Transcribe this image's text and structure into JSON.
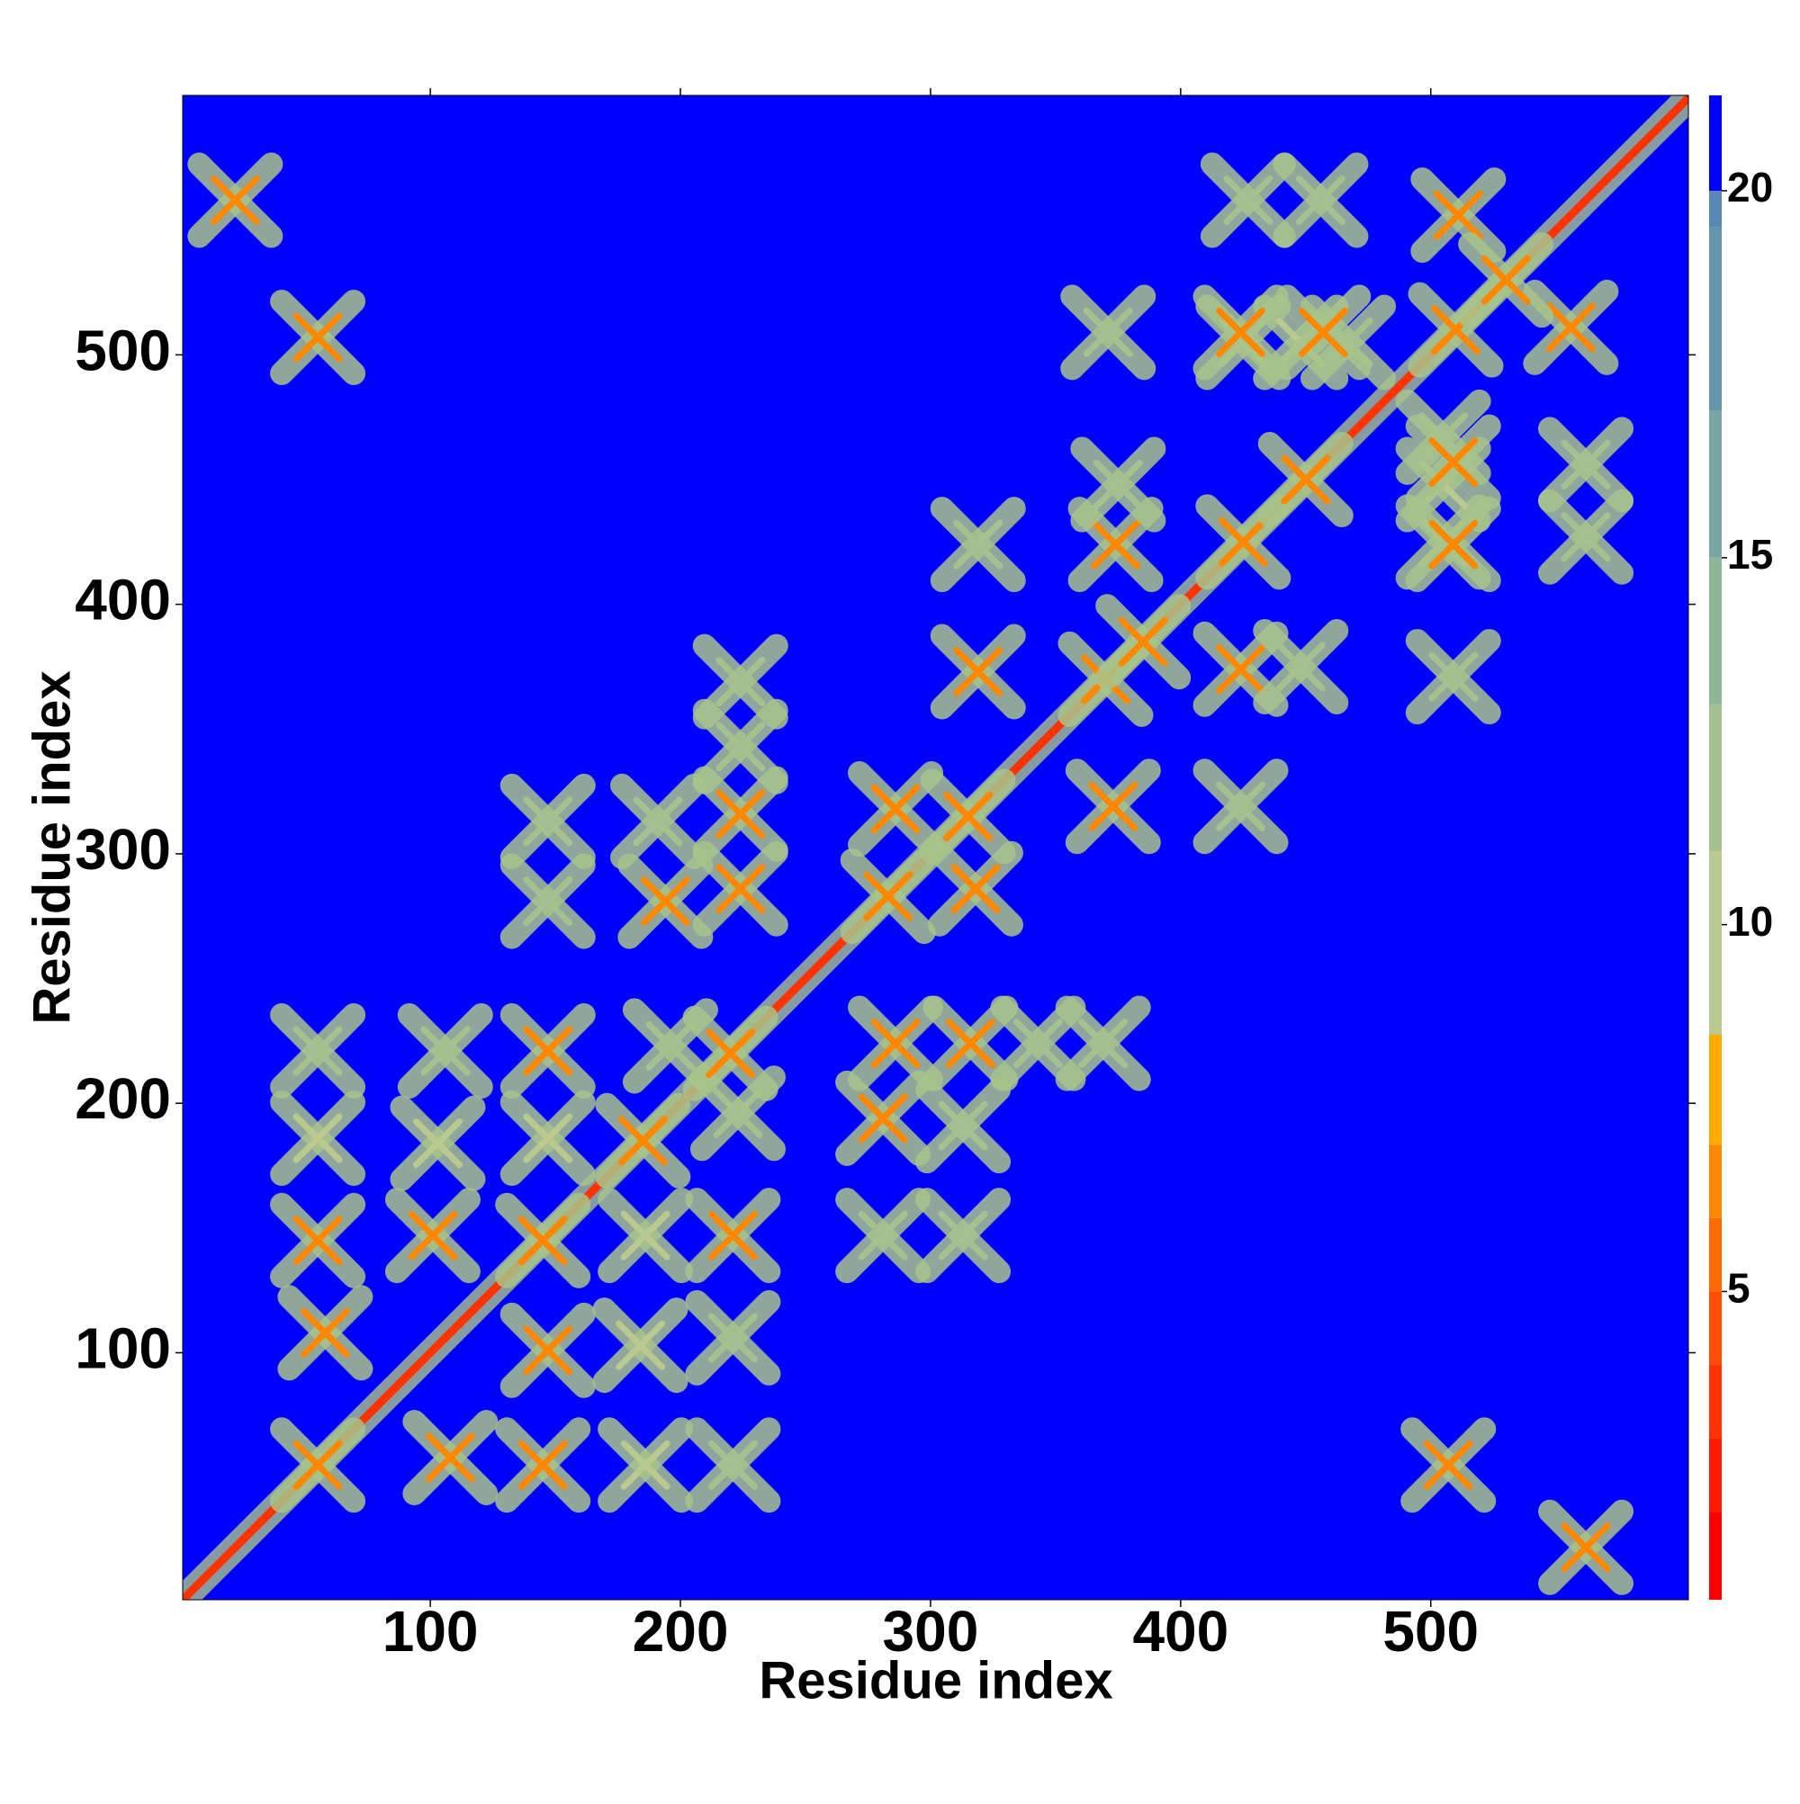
{
  "chart_data": {
    "type": "heatmap",
    "xlabel": "Residue index",
    "ylabel": "Residue index",
    "xlim": [
      1,
      603
    ],
    "ylim": [
      1,
      604
    ],
    "xticks": [
      100,
      200,
      300,
      400,
      500
    ],
    "yticks": [
      100,
      200,
      300,
      400,
      500
    ],
    "background_value": 21,
    "diagonal_value": 3.8,
    "clim": [
      0.8,
      21.3
    ],
    "cticks": [
      5,
      10,
      15,
      20
    ],
    "colorscale": [
      {
        "value": 0.8,
        "color": "#ff0000"
      },
      {
        "value": 2,
        "color": "#ff1a00"
      },
      {
        "value": 3,
        "color": "#ff3300"
      },
      {
        "value": 4,
        "color": "#ff4d00"
      },
      {
        "value": 5,
        "color": "#ff6a00"
      },
      {
        "value": 6,
        "color": "#ff8800"
      },
      {
        "value": 7,
        "color": "#ffaa00"
      },
      {
        "value": 8.5,
        "color": "#b9c98f"
      },
      {
        "value": 11,
        "color": "#a4c290"
      },
      {
        "value": 13,
        "color": "#8fb598"
      },
      {
        "value": 15,
        "color": "#7aa5a2"
      },
      {
        "value": 17,
        "color": "#6594ad"
      },
      {
        "value": 19.5,
        "color": "#5a88b5"
      },
      {
        "value": 20,
        "color": "#0000ff"
      }
    ],
    "contacts": {
      "x": [
        58,
        55,
        55,
        55,
        55,
        22,
        101,
        103,
        106,
        147,
        147,
        147,
        147,
        196,
        194,
        191,
        224,
        224,
        224,
        224,
        286,
        319,
        319,
        374,
        425,
        448,
        467,
        424,
        457,
        511,
        375,
        427,
        456,
        371,
        55,
        145,
        185,
        220,
        283,
        315,
        370,
        385,
        425,
        450,
        510,
        530
      ],
      "y": [
        108,
        145,
        186,
        221,
        507,
        562,
        147,
        184,
        221,
        186,
        221,
        281,
        313,
        223,
        281,
        313,
        286,
        316,
        343,
        369,
        318,
        373,
        424,
        424,
        505,
        505,
        505,
        509,
        509,
        556,
        448,
        562,
        562,
        509,
        55,
        145,
        185,
        220,
        283,
        315,
        370,
        385,
        425,
        450,
        510,
        530
      ],
      "values": [
        6,
        6,
        10,
        11,
        6,
        6,
        6,
        10,
        11,
        10,
        6,
        11,
        11,
        11,
        6,
        11,
        6,
        6,
        11,
        11,
        6,
        6,
        11,
        6,
        10,
        10,
        11,
        6,
        6,
        6,
        11,
        11,
        11,
        11,
        6,
        6,
        6,
        6,
        6,
        6,
        6,
        6,
        6,
        6,
        6,
        6
      ]
    }
  }
}
